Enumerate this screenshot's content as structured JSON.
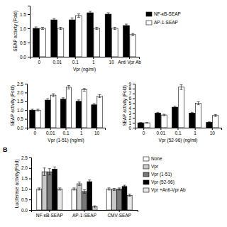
{
  "chart_data": [
    {
      "type": "bar",
      "xlabel": "Vpr (ng/ml)",
      "ylabel": "SEAP activity (Fold)",
      "categories": [
        "0",
        "0.01",
        "0.1",
        "1",
        "10",
        "Anti Vpr Ab"
      ],
      "series": [
        {
          "name": "NF-κB-SEAP",
          "color": "#000000",
          "values": [
            1.0,
            1.3,
            1.3,
            1.55,
            1.5,
            1.1
          ],
          "errors": [
            0.05,
            0.05,
            0.07,
            0.05,
            0.05,
            0.05
          ]
        },
        {
          "name": "AP-1-SEAP",
          "color": "#ffffff",
          "values": [
            1.0,
            1.0,
            1.45,
            1.0,
            1.0,
            0.78
          ],
          "errors": [
            0.04,
            0.04,
            0.06,
            0.04,
            0.04,
            0.04
          ]
        }
      ],
      "ylim": [
        0,
        1.8
      ],
      "yticks": [
        {
          "value": 0,
          "label": "0.0"
        },
        0.5,
        {
          "value": 1.0,
          "label": "1.0"
        },
        1.5
      ],
      "legend": "right"
    },
    {
      "type": "bar",
      "xlabel": "Vpr (1-51) (ng/ml)",
      "ylabel": "SEAP activity (Fold)",
      "categories": [
        "0",
        "0.01",
        "0.1",
        "1",
        "10"
      ],
      "series": [
        {
          "color": "#000000",
          "values": [
            1.0,
            1.57,
            1.62,
            1.5,
            1.3
          ],
          "errors": [
            0.05,
            0.08,
            0.08,
            0.08,
            0.07
          ]
        },
        {
          "color": "#ffffff",
          "values": [
            1.0,
            1.85,
            2.3,
            2.15,
            1.8
          ],
          "errors": [
            0.05,
            0.08,
            0.1,
            0.08,
            0.08
          ]
        }
      ],
      "ylim": [
        0,
        2.5
      ],
      "yticks": [
        {
          "value": 0,
          "label": "0.0"
        },
        0.5,
        {
          "value": 1.0,
          "label": "1.0"
        },
        1.5,
        {
          "value": 2.0,
          "label": "2.0"
        },
        2.5
      ]
    },
    {
      "type": "bar",
      "xlabel": "Vpr (52-96) (ng/ml)",
      "ylabel": "SEAP activity (Fold)",
      "categories": [
        "0",
        "0.01",
        "0.1",
        "1",
        "10"
      ],
      "series": [
        {
          "color": "#000000",
          "values": [
            1.0,
            3.0,
            4.2,
            3.0,
            1.1
          ],
          "errors": [
            0.05,
            0.15,
            0.2,
            0.15,
            0.1
          ]
        },
        {
          "color": "#ffffff",
          "values": [
            1.0,
            2.6,
            8.3,
            5.0,
            2.5
          ],
          "errors": [
            0.05,
            0.15,
            0.5,
            0.3,
            0.2
          ]
        }
      ],
      "ylim": [
        0,
        9
      ],
      "yticks": [
        0,
        1,
        2,
        3,
        4,
        5,
        6,
        7,
        8,
        9
      ]
    },
    {
      "type": "bar",
      "title": "B",
      "ylabel": "Luciferase activity(Fold)",
      "categories": [
        "NF-κB-SEAP",
        "AP-1-SEAP",
        "CMV-SEAP"
      ],
      "series": [
        {
          "name": "None",
          "color": "#ffffff",
          "values": [
            1.0,
            1.0,
            1.0
          ],
          "errors": [
            0.05,
            0.05,
            0.05
          ]
        },
        {
          "name": "Vpr",
          "color": "#c8c8c8",
          "values": [
            1.82,
            1.25,
            0.98
          ],
          "errors": [
            0.18,
            0.08,
            0.05
          ]
        },
        {
          "name": "Vpr (1-51)",
          "color": "#787878",
          "values": [
            1.82,
            0.88,
            1.0
          ],
          "errors": [
            0.15,
            0.08,
            0.05
          ]
        },
        {
          "name": "Vpr (52-96)",
          "color": "#000000",
          "values": [
            1.95,
            1.35,
            1.12
          ],
          "errors": [
            0.1,
            0.08,
            0.06
          ]
        },
        {
          "name": "Vpr +Anti-Vpr Ab",
          "color": "#e8e8e8",
          "values": [
            1.0,
            0.15,
            0.7
          ],
          "errors": [
            0.05,
            0.05,
            0.05
          ]
        }
      ],
      "ylim": [
        0,
        2.5
      ],
      "yticks": [
        {
          "value": 0,
          "label": "0.0"
        },
        0.5,
        {
          "value": 1.0,
          "label": "1.0"
        },
        1.5,
        {
          "value": 2.0,
          "label": "2.0"
        },
        2.5
      ],
      "legend": "right"
    }
  ]
}
